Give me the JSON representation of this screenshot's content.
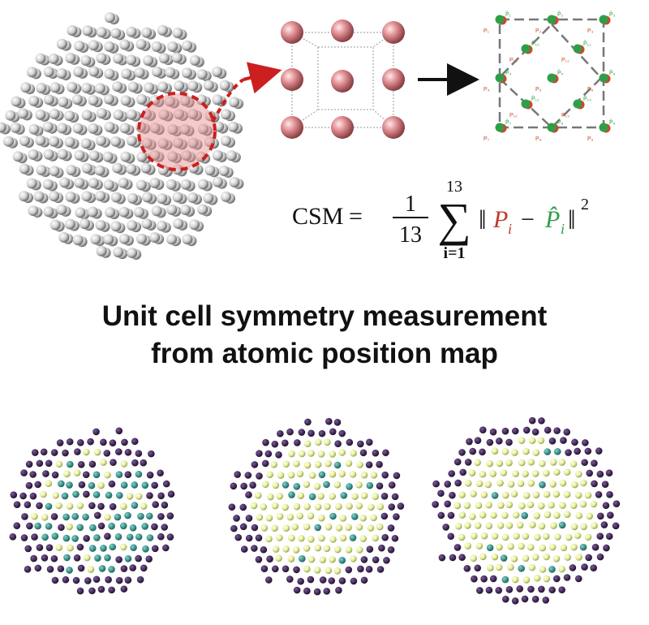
{
  "caption": {
    "line1": "Unit cell symmetry measurement",
    "line2": "from atomic position map"
  },
  "formula": {
    "lhs": "CSM",
    "equals": "=",
    "frac_num": "1",
    "frac_den": "13",
    "sum_upper": "13",
    "sum_lower": "i=1",
    "p_symbol": "P",
    "p_hat_symbol": "P̂",
    "index": "i",
    "minus": "−",
    "exponent": "2"
  },
  "point_labels": {
    "red": [
      "P₁",
      "P₂",
      "P₃",
      "P₄",
      "P₅",
      "P₆",
      "P₇",
      "P₈",
      "P₉",
      "P₁₀",
      "P₁₁",
      "P₁₂",
      "P₁₃"
    ],
    "green": [
      "P̂₁",
      "P̂₂",
      "P̂₃",
      "P̂₄",
      "P̂₅",
      "P̂₆",
      "P̂₇",
      "P̂₈",
      "P̂₉",
      "P̂₁₀",
      "P̂₁₁",
      "P̂₁₂",
      "P̂₁₃"
    ]
  },
  "colors": {
    "gray_atom": "#d8d8d8",
    "highlight_red": "#cc1f1f",
    "fcc_atom": "#d9878a",
    "measured_point": "#c84a2a",
    "ideal_point": "#2f9e49",
    "purple_atom": "#3b1f55",
    "teal_atom": "#2a8a86",
    "yellow_atom": "#e7ef9c"
  }
}
